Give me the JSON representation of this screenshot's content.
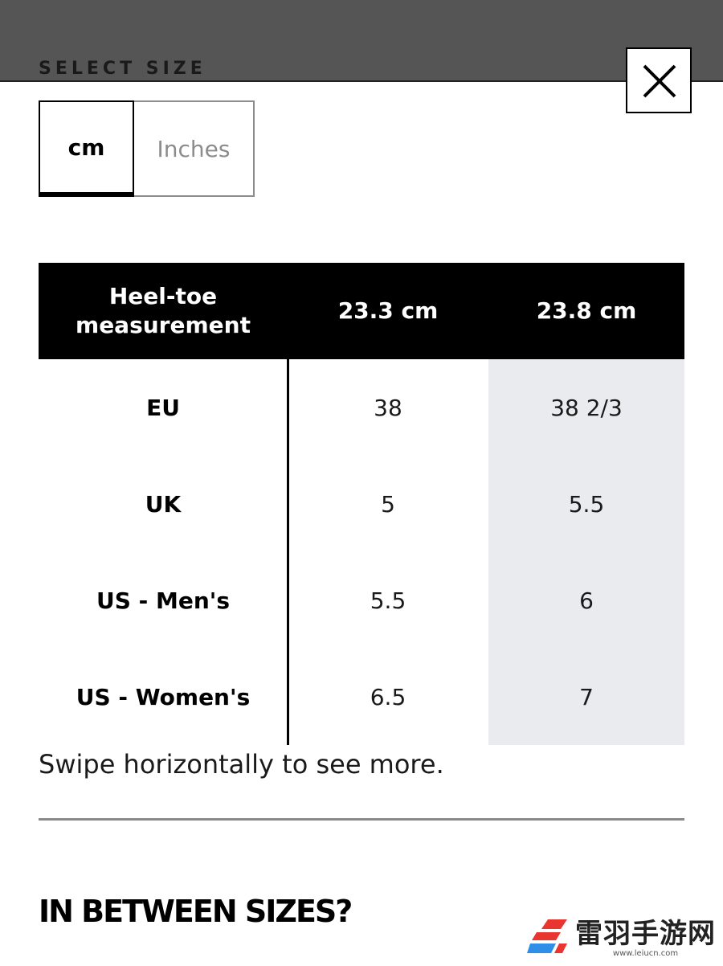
{
  "header": {
    "title": "SELECT SIZE",
    "close_icon": "close-icon"
  },
  "unit_toggle": {
    "options": [
      {
        "label": "cm",
        "selected": true
      },
      {
        "label": "Inches",
        "selected": false
      }
    ]
  },
  "size_table": {
    "header": [
      "Heel-toe measurement",
      "23.3 cm",
      "23.8 cm"
    ],
    "rows": [
      {
        "label": "EU",
        "values": [
          "38",
          "38 2/3"
        ]
      },
      {
        "label": "UK",
        "values": [
          "5",
          "5.5"
        ]
      },
      {
        "label": "US - Men's",
        "values": [
          "5.5",
          "6"
        ]
      },
      {
        "label": "US - Women's",
        "values": [
          "6.5",
          "7"
        ]
      }
    ],
    "highlighted_column": 2
  },
  "hint": "Swipe horizontally to see more.",
  "section": {
    "title": "IN BETWEEN SIZES?"
  },
  "watermark": {
    "name": "雷羽手游网",
    "url": "www.leiucn.com"
  },
  "colors": {
    "overlay": "#555555",
    "highlight_column": "#eaebee",
    "inactive_text": "#8c8c8c",
    "watermark_red": "#e8352f",
    "watermark_blue": "#2f8fe8"
  }
}
